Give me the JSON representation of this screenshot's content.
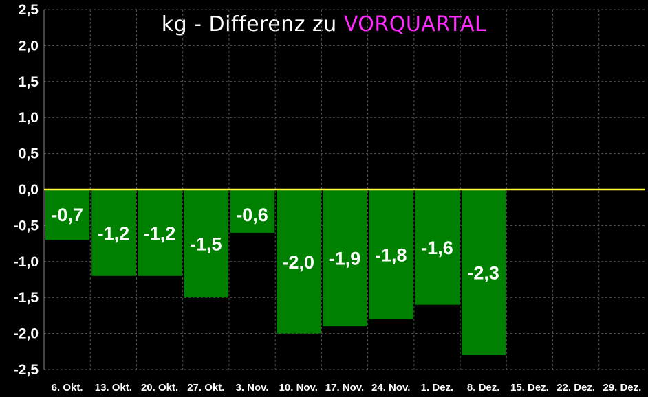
{
  "chart_data": {
    "type": "bar",
    "title": "kg - Differenz zu",
    "title_highlight": "VORQUARTAL",
    "categories": [
      "6. Okt.",
      "13. Okt.",
      "20. Okt.",
      "27. Okt.",
      "3. Nov.",
      "10. Nov.",
      "17. Nov.",
      "24. Nov.",
      "1. Dez.",
      "8. Dez.",
      "15. Dez.",
      "22. Dez.",
      "29. Dez."
    ],
    "values": [
      -0.7,
      -1.2,
      -1.2,
      -1.5,
      -0.6,
      -2.0,
      -1.9,
      -1.8,
      -1.6,
      -2.3,
      null,
      null,
      null
    ],
    "data_labels": [
      "-0,7",
      "-1,2",
      "-1,2",
      "-1,5",
      "-0,6",
      "-2,0",
      "-1,9",
      "-1,8",
      "-1,6",
      "-2,3",
      "",
      "",
      ""
    ],
    "y_ticks": [
      "2,5",
      "2,0",
      "1,5",
      "1,0",
      "0,5",
      "0,0",
      "-0,5",
      "-1,0",
      "-1,5",
      "-2,0",
      "-2,5"
    ],
    "ylim": [
      -2.5,
      2.5
    ],
    "grid": true,
    "xlabel": "",
    "ylabel": "",
    "colors": {
      "background": "#000000",
      "bar": "#008000",
      "zero_line": "#ffff33",
      "grid": "#555555",
      "title_highlight": "#ff2bff",
      "text": "#ffffff"
    }
  }
}
